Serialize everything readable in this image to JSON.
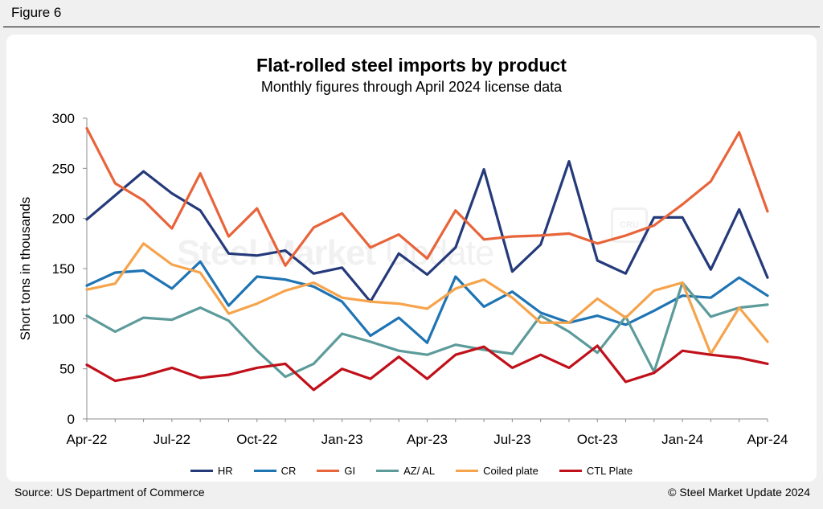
{
  "figure_label": "Figure 6",
  "source": "Source: US Department of Commerce",
  "credit": "© Steel Market Update 2024",
  "watermark": {
    "brand_bold": "Steel Market",
    "brand_light": " Update",
    "badge": "CRU"
  },
  "chart_data": {
    "type": "line",
    "title": "Flat-rolled steel imports by product",
    "subtitle": "Monthly figures through April 2024 license data",
    "ylabel": "Short tons in thousands",
    "xlabel": "",
    "ylim": [
      0,
      300
    ],
    "yticks": [
      0,
      50,
      100,
      150,
      200,
      250,
      300
    ],
    "x": [
      "Apr-22",
      "May-22",
      "Jun-22",
      "Jul-22",
      "Aug-22",
      "Sep-22",
      "Oct-22",
      "Nov-22",
      "Dec-22",
      "Jan-23",
      "Feb-23",
      "Mar-23",
      "Apr-23",
      "May-23",
      "Jun-23",
      "Jul-23",
      "Aug-23",
      "Sep-23",
      "Oct-23",
      "Nov-23",
      "Dec-23",
      "Jan-24",
      "Feb-24",
      "Mar-24",
      "Apr-24"
    ],
    "xtick_labels": [
      "Apr-22",
      "Jul-22",
      "Oct-22",
      "Jan-23",
      "Apr-23",
      "Jul-23",
      "Oct-23",
      "Jan-24",
      "Apr-24"
    ],
    "grid": false,
    "legend_position": "bottom",
    "series": [
      {
        "name": "HR",
        "color": "#253a7a",
        "values": [
          199,
          223,
          247,
          225,
          208,
          165,
          163,
          168,
          145,
          151,
          117,
          165,
          144,
          171,
          249,
          147,
          174,
          257,
          158,
          145,
          201,
          201,
          149,
          209,
          141
        ]
      },
      {
        "name": "CR",
        "color": "#1f74b4",
        "values": [
          133,
          146,
          148,
          130,
          157,
          113,
          142,
          139,
          132,
          117,
          83,
          101,
          76,
          142,
          112,
          127,
          106,
          96,
          103,
          94,
          108,
          123,
          121,
          141,
          123
        ]
      },
      {
        "name": "GI",
        "color": "#e8643a",
        "values": [
          290,
          235,
          218,
          190,
          245,
          182,
          210,
          153,
          191,
          205,
          171,
          184,
          160,
          208,
          179,
          182,
          183,
          185,
          175,
          183,
          193,
          214,
          237,
          286,
          207
        ]
      },
      {
        "name": "AZ/ AL",
        "color": "#5d9b9b",
        "values": [
          103,
          87,
          101,
          99,
          111,
          98,
          68,
          42,
          55,
          85,
          77,
          68,
          64,
          74,
          69,
          65,
          103,
          87,
          66,
          102,
          47,
          136,
          102,
          111,
          114
        ]
      },
      {
        "name": "Coiled plate",
        "color": "#f6a44c",
        "values": [
          129,
          135,
          175,
          154,
          146,
          105,
          115,
          128,
          136,
          121,
          117,
          115,
          110,
          130,
          139,
          121,
          96,
          96,
          120,
          101,
          128,
          136,
          65,
          111,
          77
        ]
      },
      {
        "name": "CTL Plate",
        "color": "#c0101a",
        "values": [
          54,
          38,
          43,
          51,
          41,
          44,
          51,
          55,
          29,
          50,
          40,
          62,
          40,
          64,
          72,
          51,
          64,
          51,
          73,
          37,
          46,
          68,
          64,
          61,
          55
        ]
      }
    ]
  }
}
